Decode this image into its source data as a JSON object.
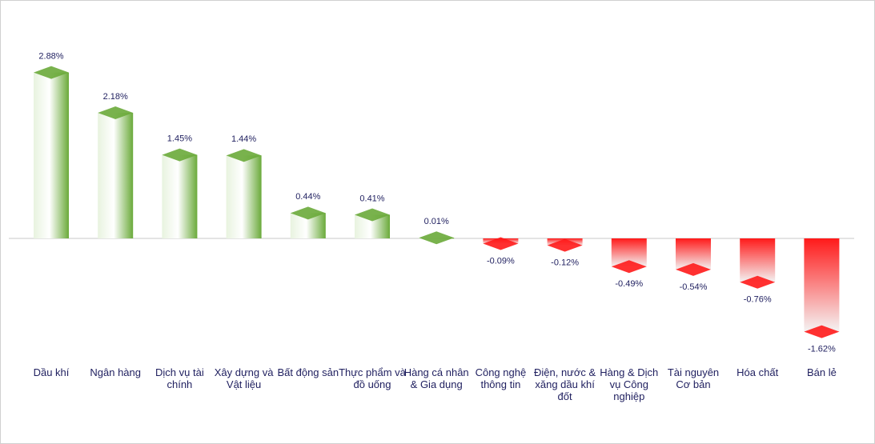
{
  "chart_data": {
    "type": "bar",
    "categories": [
      "Dầu khí",
      "Ngân hàng",
      "Dịch vụ tài chính",
      "Xây dựng và Vật liệu",
      "Bất động sản",
      "Thực phẩm và đồ uống",
      "Hàng cá nhân & Gia dụng",
      "Công nghệ thông tin",
      "Điện, nước & xăng dầu khí đốt",
      "Hàng & Dịch vụ Công nghiệp",
      "Tài nguyên Cơ bản",
      "Hóa chất",
      "Bán lẻ"
    ],
    "values": [
      2.88,
      2.18,
      1.45,
      1.44,
      0.44,
      0.41,
      0.01,
      -0.09,
      -0.12,
      -0.49,
      -0.54,
      -0.76,
      -1.62
    ],
    "value_labels": [
      "2.88%",
      "2.18%",
      "1.45%",
      "1.44%",
      "0.44%",
      "0.41%",
      "0.01%",
      "-0.09%",
      "-0.12%",
      "-0.49%",
      "-0.54%",
      "-0.76%",
      "-1.62%"
    ],
    "positive_color": "#6aaa3a",
    "negative_color": "#ff1a1a"
  }
}
